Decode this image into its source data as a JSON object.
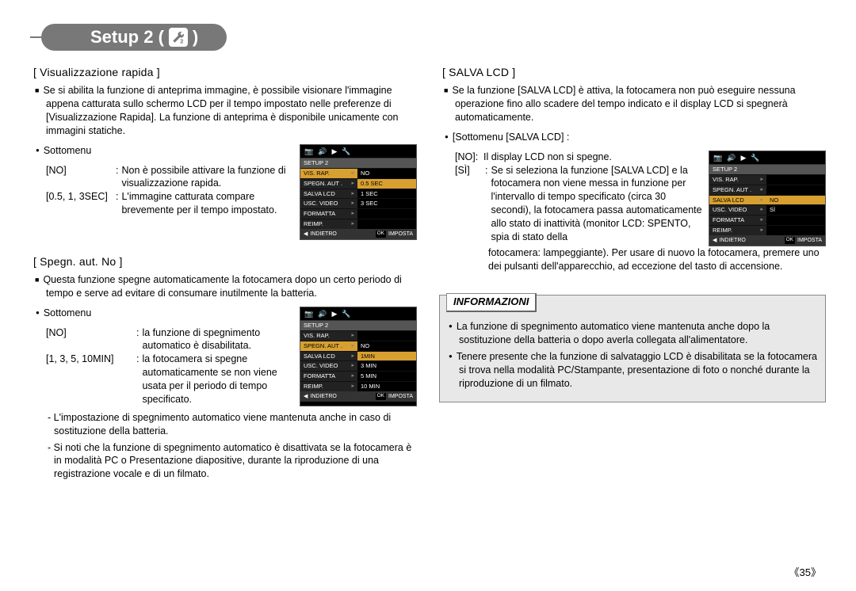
{
  "header": {
    "title_prefix": "Setup 2 (",
    "title_suffix": ")",
    "icon_name": "wrench-2-icon"
  },
  "left": {
    "s1": {
      "title": "[ Visualizzazione rapida ]",
      "desc": "Se si abilita la funzione di anteprima immagine, è possibile visionare l'immagine appena catturata sullo schermo LCD per il tempo impostato nelle preferenze di [Visualizzazione Rapida]. La funzione di anteprima è disponibile unicamente con immagini statiche.",
      "sub_label": "Sottomenu",
      "rows": [
        {
          "k": "[NO]",
          "v": "Non è possibile attivare la funzione di visualizzazione rapida.",
          "kw": "86px"
        },
        {
          "k": "[0.5, 1, 3SEC]",
          "v": "L'immagine catturata compare brevemente per il tempo impostato.",
          "kw": "86px"
        }
      ],
      "lcd": {
        "title": "SETUP 2",
        "rows": [
          {
            "l": "VIS. RAP.",
            "r": "NO",
            "sel_l": true
          },
          {
            "l": "SPEGN. AUT .",
            "r": "0.5 SEC",
            "sel_r": true
          },
          {
            "l": "SALVA LCD",
            "r": "1 SEC"
          },
          {
            "l": "USC. VIDEO",
            "r": "3 SEC"
          },
          {
            "l": "FORMATTA",
            "r": ""
          },
          {
            "l": "REIMP.",
            "r": ""
          }
        ],
        "footer_l": "INDIETRO",
        "footer_r": "IMPOSTA"
      }
    },
    "s2": {
      "title": "[ Spegn. aut. No ]",
      "desc": "Questa funzione spegne automaticamente la fotocamera dopo un certo periodo di tempo e serve ad evitare di consumare inutilmente la batteria.",
      "sub_label": "Sottomenu",
      "rows": [
        {
          "k": "[NO]",
          "v": "la funzione di spegnimento automatico è disabilitata.",
          "kw": "112px"
        },
        {
          "k": "[1, 3, 5, 10MIN]",
          "v": "la fotocamera si spegne automaticamente se non viene usata per il periodo di tempo specificato.",
          "kw": "112px"
        }
      ],
      "notes": [
        "- L'impostazione di spegnimento automatico viene mantenuta anche in caso di sostituzione della batteria.",
        "- Si noti che la funzione di spegnimento automatico è disattivata se la fotocamera è in modalità PC o Presentazione diapositive, durante la riproduzione di una registrazione vocale e di un filmato."
      ],
      "lcd": {
        "title": "SETUP 2",
        "rows": [
          {
            "l": "VIS. RAP.",
            "r": ""
          },
          {
            "l": "SPEGN. AUT .",
            "r": "NO",
            "sel_l": true
          },
          {
            "l": "SALVA LCD",
            "r": "1MIN",
            "sel_r": true
          },
          {
            "l": "USC. VIDEO",
            "r": "3 MIN"
          },
          {
            "l": "FORMATTA",
            "r": "5 MIN"
          },
          {
            "l": "REIMP.",
            "r": "10 MIN"
          }
        ],
        "footer_l": "INDIETRO",
        "footer_r": "IMPOSTA"
      }
    }
  },
  "right": {
    "s1": {
      "title": "[ SALVA LCD ]",
      "desc": "Se la funzione [SALVA LCD] è attiva, la fotocamera non può eseguire nessuna operazione fino allo scadere del tempo indicato e il display LCD si spegnerà automaticamente.",
      "sub_label": "[Sottomenu [SALVA LCD] :",
      "row_no": {
        "k": "[NO]:",
        "v": "Il display LCD non si spegne."
      },
      "row_si_k": "[SÌ]",
      "row_si_v": "Se si seleziona la funzione [SALVA LCD] e la fotocamera non viene messa in funzione per l'intervallo di tempo specificato (circa 30 secondi), la fotocamera passa automaticamente allo stato di inattività (monitor LCD: SPENTO, spia di stato della",
      "tail": "fotocamera: lampeggiante). Per usare di nuovo la fotocamera, premere uno dei pulsanti dell'apparecchio, ad eccezione del tasto di accensione.",
      "lcd": {
        "title": "SETUP 2",
        "rows": [
          {
            "l": "VIS. RAP.",
            "r": ""
          },
          {
            "l": "SPEGN. AUT .",
            "r": ""
          },
          {
            "l": "SALVA LCD",
            "r": "NO",
            "sel_l": true,
            "sel_r": true
          },
          {
            "l": "USC. VIDEO",
            "r": "SÌ"
          },
          {
            "l": "FORMATTA",
            "r": ""
          },
          {
            "l": "REIMP.",
            "r": ""
          }
        ],
        "footer_l": "INDIETRO",
        "footer_r": "IMPOSTA"
      }
    },
    "info": {
      "title": "INFORMAZIONI",
      "items": [
        "La funzione di spegnimento automatico viene mantenuta anche dopo la sostituzione della batteria o dopo averla collegata all'alimentatore.",
        "Tenere presente che la funzione di salvataggio LCD è disabilitata se la fotocamera si trova nella modalità PC/Stampante, presentazione di foto o nonché durante la riproduzione di un filmato."
      ]
    }
  },
  "pagenum": "《35》",
  "colors": {
    "pill_bg": "#787878",
    "highlight": "#d8a030",
    "info_bg": "#e8e8e8"
  }
}
